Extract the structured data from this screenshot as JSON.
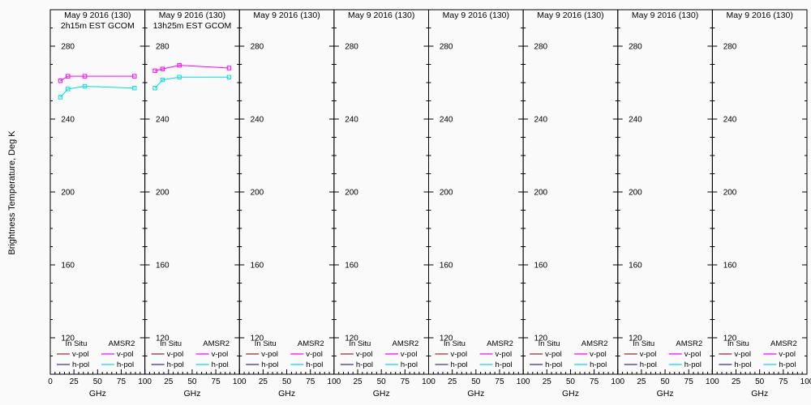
{
  "figure": {
    "background": "#fafafa",
    "axis_color": "#000000"
  },
  "chart_data": {
    "type": "line",
    "ylabel": "Brightness Temperature, Deg K",
    "xlabel": "GHz",
    "x_range": [
      0,
      100
    ],
    "y_range": [
      100,
      300
    ],
    "x_ticks": [
      0,
      25,
      50,
      75,
      100
    ],
    "y_ticks": [
      120,
      160,
      200,
      240,
      280
    ],
    "grid": false,
    "marker": "open-square",
    "legend": {
      "columns": [
        "In Situ",
        "AMSR2"
      ],
      "rows": [
        {
          "label": "v-pol",
          "colors": [
            "#8B3030",
            "#FF00FF"
          ]
        },
        {
          "label": "h-pol",
          "colors": [
            "#30309C",
            "#00E0E0"
          ]
        }
      ]
    },
    "panels": [
      {
        "title": "May 9 2016 (130)",
        "subtitle": "2h15m EST GCOM",
        "series": [
          {
            "name": "AMSR2 v-pol",
            "color": "#FF00FF",
            "x": [
              10.65,
              18.7,
              36.5,
              89
            ],
            "y": [
              261,
              263.5,
              263.5,
              263.5
            ]
          },
          {
            "name": "AMSR2 h-pol",
            "color": "#00E0E0",
            "x": [
              10.65,
              18.7,
              36.5,
              89
            ],
            "y": [
              252,
              256.5,
              258,
              257
            ]
          }
        ]
      },
      {
        "title": "May 9 2016 (130)",
        "subtitle": "13h25m EST GCOM",
        "series": [
          {
            "name": "AMSR2 v-pol",
            "color": "#FF00FF",
            "x": [
              10.65,
              18.7,
              36.5,
              89
            ],
            "y": [
              266.5,
              267.5,
              269.5,
              268
            ]
          },
          {
            "name": "AMSR2 h-pol",
            "color": "#00E0E0",
            "x": [
              10.65,
              18.7,
              36.5,
              89
            ],
            "y": [
              257,
              261.5,
              263,
              263
            ]
          }
        ]
      },
      {
        "title": "May 9 2016 (130)",
        "subtitle": "",
        "series": []
      },
      {
        "title": "May 9 2016 (130)",
        "subtitle": "",
        "series": []
      },
      {
        "title": "May 9 2016 (130)",
        "subtitle": "",
        "series": []
      },
      {
        "title": "May 9 2016 (130)",
        "subtitle": "",
        "series": []
      },
      {
        "title": "May 9 2016 (130)",
        "subtitle": "",
        "series": []
      },
      {
        "title": "May 9 2016 (130)",
        "subtitle": "",
        "series": []
      }
    ]
  }
}
